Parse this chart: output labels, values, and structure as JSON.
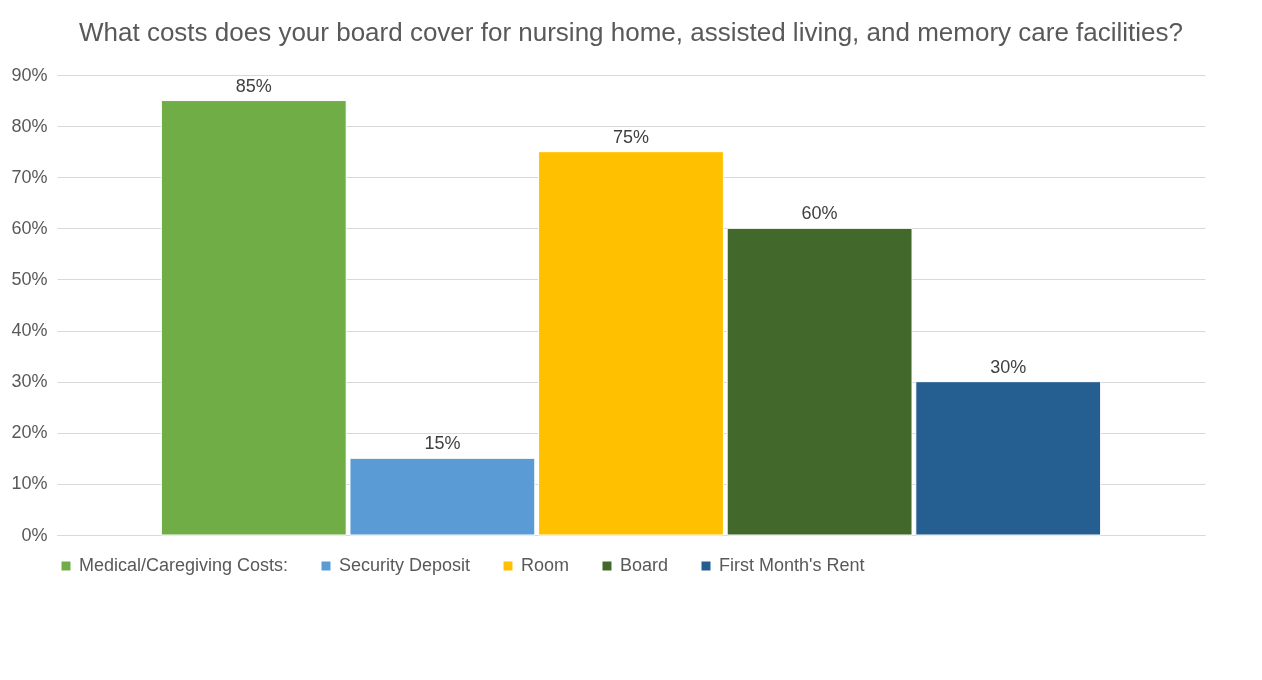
{
  "chart_data": {
    "type": "bar",
    "title": "What costs does your board cover for nursing home, assisted living, and memory care facilities?",
    "categories": [
      null
    ],
    "series": [
      {
        "name": "Medical/Caregiving Costs:",
        "color": "#70ad47",
        "values": [
          85
        ],
        "value_labels": [
          "85%"
        ]
      },
      {
        "name": "Security Deposit",
        "color": "#5b9bd5",
        "values": [
          15
        ],
        "value_labels": [
          "15%"
        ]
      },
      {
        "name": "Room",
        "color": "#ffc000",
        "values": [
          75
        ],
        "value_labels": [
          "75%"
        ]
      },
      {
        "name": "Board",
        "color": "#43682b",
        "values": [
          60
        ],
        "value_labels": [
          "60%"
        ]
      },
      {
        "name": "First Month's Rent",
        "color": "#255e91",
        "values": [
          30
        ],
        "value_labels": [
          "30%"
        ]
      }
    ],
    "ylim": [
      0,
      90
    ],
    "yticks": [
      {
        "value": 0,
        "label": "0%"
      },
      {
        "value": 10,
        "label": "10%"
      },
      {
        "value": 20,
        "label": "20%"
      },
      {
        "value": 30,
        "label": "30%"
      },
      {
        "value": 40,
        "label": "40%"
      },
      {
        "value": 50,
        "label": "50%"
      },
      {
        "value": 60,
        "label": "60%"
      },
      {
        "value": 70,
        "label": "70%"
      },
      {
        "value": 80,
        "label": "80%"
      },
      {
        "value": 90,
        "label": "90%"
      }
    ],
    "grid": "y",
    "legend": "bottom"
  }
}
